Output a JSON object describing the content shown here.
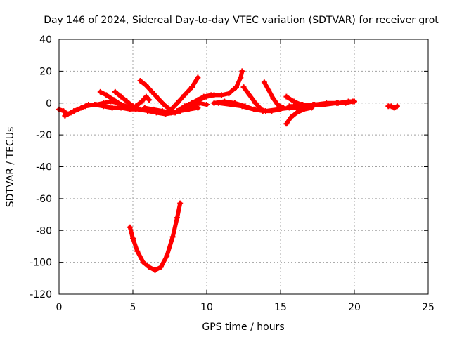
{
  "chart_data": {
    "type": "scatter",
    "title": "Day 146 of 2024, Sidereal Day-to-day VTEC variation (SDTVAR) for receiver grot",
    "xlabel": "GPS time / hours",
    "ylabel": "SDTVAR / TECUs",
    "xlim": [
      0,
      25
    ],
    "ylim": [
      -120,
      40
    ],
    "xticks": [
      0,
      5,
      10,
      15,
      20,
      25
    ],
    "yticks": [
      -120,
      -100,
      -80,
      -60,
      -40,
      -20,
      0,
      20,
      40
    ],
    "grid": true,
    "color": "#ff0000",
    "series": [
      {
        "points": [
          [
            0.0,
            -4
          ],
          [
            0.3,
            -5
          ],
          [
            0.6,
            -7
          ],
          [
            1.0,
            -5
          ],
          [
            1.5,
            -3
          ],
          [
            2.0,
            -1
          ],
          [
            2.5,
            -1
          ],
          [
            3.0,
            0
          ],
          [
            3.5,
            1
          ],
          [
            4.0,
            0
          ],
          [
            4.5,
            -2
          ],
          [
            5.0,
            -3
          ],
          [
            5.5,
            -4
          ]
        ]
      },
      {
        "points": [
          [
            0.4,
            -8
          ],
          [
            0.8,
            -6
          ],
          [
            1.3,
            -4
          ],
          [
            1.8,
            -2
          ],
          [
            2.4,
            -1
          ],
          [
            3.0,
            -2
          ],
          [
            3.6,
            -3
          ],
          [
            4.2,
            -3
          ],
          [
            4.8,
            -4
          ],
          [
            5.4,
            -4
          ],
          [
            6.0,
            -5
          ],
          [
            6.6,
            -6
          ],
          [
            7.2,
            -7
          ],
          [
            7.8,
            -6
          ],
          [
            8.2,
            -5
          ]
        ]
      },
      {
        "points": [
          [
            2.8,
            7
          ],
          [
            3.2,
            5
          ],
          [
            3.7,
            2
          ],
          [
            4.2,
            -1
          ],
          [
            4.7,
            -3
          ],
          [
            5.2,
            -4
          ]
        ]
      },
      {
        "points": [
          [
            3.8,
            7
          ],
          [
            4.2,
            4
          ],
          [
            4.6,
            1
          ],
          [
            5.0,
            -2
          ],
          [
            5.4,
            -4
          ]
        ]
      },
      {
        "points": [
          [
            5.5,
            14
          ],
          [
            5.9,
            11
          ],
          [
            6.3,
            7
          ],
          [
            6.7,
            3
          ],
          [
            7.1,
            -1
          ],
          [
            7.5,
            -4
          ],
          [
            7.9,
            -6
          ]
        ]
      },
      {
        "points": [
          [
            4.8,
            -3
          ],
          [
            5.2,
            -2
          ],
          [
            5.6,
            1
          ],
          [
            5.9,
            4
          ],
          [
            6.1,
            2
          ]
        ]
      },
      {
        "points": [
          [
            5.8,
            -3
          ],
          [
            6.4,
            -4
          ],
          [
            7.0,
            -5
          ],
          [
            7.6,
            -6
          ],
          [
            8.2,
            -5
          ],
          [
            8.8,
            -4
          ],
          [
            9.4,
            -3
          ]
        ]
      },
      {
        "points": [
          [
            7.2,
            -7
          ],
          [
            7.6,
            -4
          ],
          [
            8.0,
            0
          ],
          [
            8.5,
            5
          ],
          [
            9.0,
            10
          ],
          [
            9.4,
            16
          ]
        ]
      },
      {
        "points": [
          [
            8.0,
            -5
          ],
          [
            8.5,
            -2
          ],
          [
            9.0,
            0
          ],
          [
            9.5,
            2
          ],
          [
            10.0,
            4
          ],
          [
            10.5,
            5
          ],
          [
            11.0,
            5
          ],
          [
            11.5,
            6
          ],
          [
            12.0,
            10
          ],
          [
            12.3,
            16
          ],
          [
            12.4,
            20
          ]
        ]
      },
      {
        "points": [
          [
            8.5,
            -4
          ],
          [
            9.0,
            -2
          ],
          [
            9.5,
            0
          ],
          [
            10.0,
            -1
          ]
        ]
      },
      {
        "points": [
          [
            8.2,
            -4
          ],
          [
            8.8,
            -1
          ],
          [
            9.4,
            2
          ],
          [
            9.8,
            4
          ],
          [
            10.3,
            5
          ]
        ]
      },
      {
        "points": [
          [
            10.5,
            0
          ],
          [
            11.2,
            1
          ],
          [
            11.9,
            0
          ],
          [
            12.6,
            -2
          ],
          [
            13.2,
            -4
          ],
          [
            13.8,
            -5
          ],
          [
            14.4,
            -5
          ],
          [
            15.0,
            -4
          ]
        ]
      },
      {
        "points": [
          [
            12.5,
            10
          ],
          [
            12.9,
            5
          ],
          [
            13.3,
            0
          ],
          [
            13.7,
            -4
          ],
          [
            14.0,
            -5
          ]
        ]
      },
      {
        "points": [
          [
            13.9,
            13
          ],
          [
            14.2,
            8
          ],
          [
            14.5,
            3
          ],
          [
            14.8,
            -1
          ],
          [
            15.2,
            -3
          ]
        ]
      },
      {
        "points": [
          [
            10.8,
            0
          ],
          [
            11.6,
            -1
          ],
          [
            12.4,
            -2
          ],
          [
            13.2,
            -4
          ],
          [
            14.0,
            -5
          ],
          [
            14.8,
            -4
          ],
          [
            15.6,
            -3
          ],
          [
            16.4,
            -3
          ],
          [
            17.2,
            -2
          ]
        ]
      },
      {
        "points": [
          [
            15.4,
            4
          ],
          [
            15.9,
            1
          ],
          [
            16.4,
            -1
          ],
          [
            16.9,
            -2
          ],
          [
            17.3,
            -1
          ]
        ]
      },
      {
        "points": [
          [
            15.4,
            -13
          ],
          [
            15.7,
            -9
          ],
          [
            16.1,
            -6
          ],
          [
            16.6,
            -4
          ],
          [
            17.1,
            -3
          ]
        ]
      },
      {
        "points": [
          [
            15.6,
            -2
          ],
          [
            16.4,
            -2
          ],
          [
            17.2,
            -1
          ],
          [
            18.0,
            -1
          ],
          [
            18.8,
            0
          ],
          [
            19.4,
            0
          ],
          [
            19.9,
            1
          ]
        ]
      },
      {
        "points": [
          [
            16.5,
            -1
          ],
          [
            17.3,
            -1
          ],
          [
            18.1,
            0
          ],
          [
            18.9,
            0
          ],
          [
            19.6,
            1
          ],
          [
            20.0,
            1
          ]
        ]
      },
      {
        "points": [
          [
            22.3,
            -2
          ],
          [
            22.5,
            -2
          ],
          [
            22.7,
            -3
          ],
          [
            22.9,
            -2
          ]
        ]
      },
      {
        "points": [
          [
            4.8,
            -78
          ],
          [
            5.0,
            -85
          ],
          [
            5.3,
            -93
          ],
          [
            5.7,
            -100
          ],
          [
            6.1,
            -103
          ],
          [
            6.5,
            -105
          ],
          [
            6.9,
            -103
          ],
          [
            7.3,
            -96
          ],
          [
            7.7,
            -84
          ],
          [
            8.0,
            -72
          ],
          [
            8.2,
            -63
          ]
        ]
      }
    ]
  }
}
